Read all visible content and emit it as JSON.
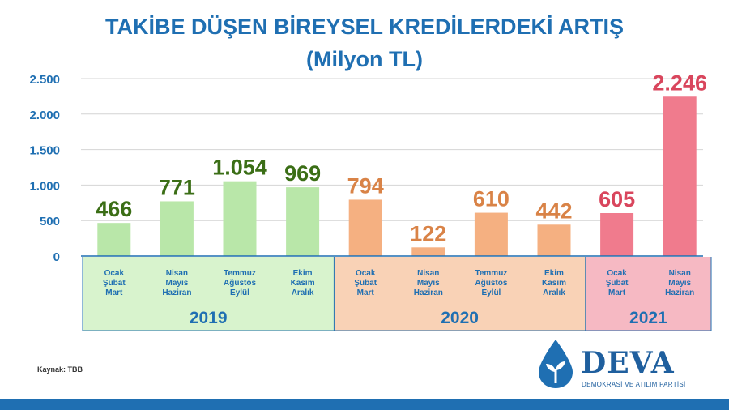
{
  "title": "TAKİBE DÜŞEN BİREYSEL KREDİLERDEKİ ARTIŞ",
  "subtitle": "(Milyon TL)",
  "source": "Kaynak: TBB",
  "logo": {
    "name": "DEVA",
    "tagline": "DEMOKRASİ VE ATILIM PARTİSİ",
    "icon": "water-drop-plant-icon"
  },
  "colors": {
    "title": "#1f6fb2",
    "axis": "#1f6fb2",
    "bottom_bar": "#1f6fb2",
    "2019": {
      "bar": "#b9e7a9",
      "label": "#3b6e16",
      "band": "#d8f3cd"
    },
    "2020": {
      "bar": "#f5b081",
      "label": "#d98347",
      "band": "#f9d2b6"
    },
    "2021": {
      "bar": "#f07b8d",
      "label": "#d9465d",
      "band": "#f6b9c3"
    }
  },
  "chart_data": {
    "type": "bar",
    "title": "TAKİBE DÜŞEN BİREYSEL KREDİLERDEKİ ARTIŞ",
    "subtitle": "(Milyon TL)",
    "ylim": [
      0,
      2500
    ],
    "yticks": [
      0,
      500,
      1000,
      1500,
      2000,
      2500
    ],
    "ytick_labels": [
      "0",
      "500",
      "1.000",
      "1.500",
      "2.000",
      "2.500"
    ],
    "grid": true,
    "legend": "none",
    "groups": [
      {
        "year": "2019",
        "bars": [
          {
            "category": [
              "Ocak",
              "Şubat",
              "Mart"
            ],
            "value": 466,
            "label": "466"
          },
          {
            "category": [
              "Nisan",
              "Mayıs",
              "Haziran"
            ],
            "value": 771,
            "label": "771"
          },
          {
            "category": [
              "Temmuz",
              "Ağustos",
              "Eylül"
            ],
            "value": 1054,
            "label": "1.054"
          },
          {
            "category": [
              "Ekim",
              "Kasım",
              "Aralık"
            ],
            "value": 969,
            "label": "969"
          }
        ]
      },
      {
        "year": "2020",
        "bars": [
          {
            "category": [
              "Ocak",
              "Şubat",
              "Mart"
            ],
            "value": 794,
            "label": "794"
          },
          {
            "category": [
              "Nisan",
              "Mayıs",
              "Haziran"
            ],
            "value": 122,
            "label": "122"
          },
          {
            "category": [
              "Temmuz",
              "Ağustos",
              "Eylül"
            ],
            "value": 610,
            "label": "610"
          },
          {
            "category": [
              "Ekim",
              "Kasım",
              "Aralık"
            ],
            "value": 442,
            "label": "442"
          }
        ]
      },
      {
        "year": "2021",
        "bars": [
          {
            "category": [
              "Ocak",
              "Şubat",
              "Mart"
            ],
            "value": 605,
            "label": "605"
          },
          {
            "category": [
              "Nisan",
              "Mayıs",
              "Haziran"
            ],
            "value": 2246,
            "label": "2.246"
          }
        ]
      }
    ]
  }
}
